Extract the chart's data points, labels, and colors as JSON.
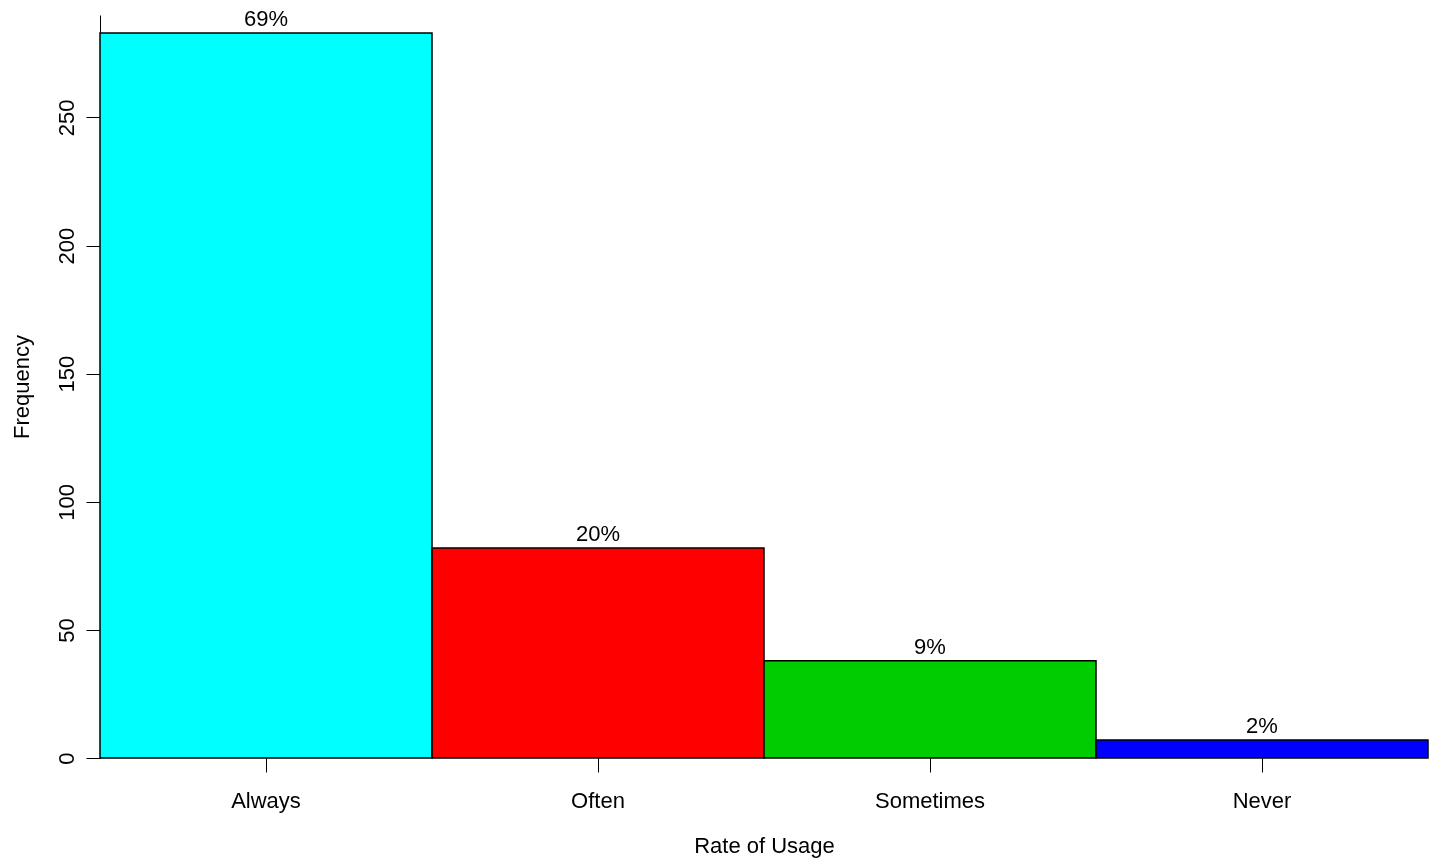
{
  "chart_data": {
    "type": "bar",
    "xlabel": "Rate of Usage",
    "ylabel": "Frequency",
    "categories": [
      "Always",
      "Often",
      "Sometimes",
      "Never"
    ],
    "values": [
      283,
      82,
      38,
      7
    ],
    "colors": [
      "#00ffff",
      "#ff0000",
      "#00cd00",
      "#0000ff"
    ],
    "annotations": [
      {
        "text": "69%",
        "x": "Always",
        "y": 283
      },
      {
        "text": "20%",
        "x": "Often",
        "y": 82
      },
      {
        "text": "9%",
        "x": "Sometimes",
        "y": 38
      },
      {
        "text": "2%",
        "x": "Never",
        "y": 7
      }
    ],
    "ylim": [
      0,
      290
    ],
    "yticks": [
      0,
      50,
      100,
      150,
      200,
      250
    ],
    "grid": false,
    "legend": false
  }
}
